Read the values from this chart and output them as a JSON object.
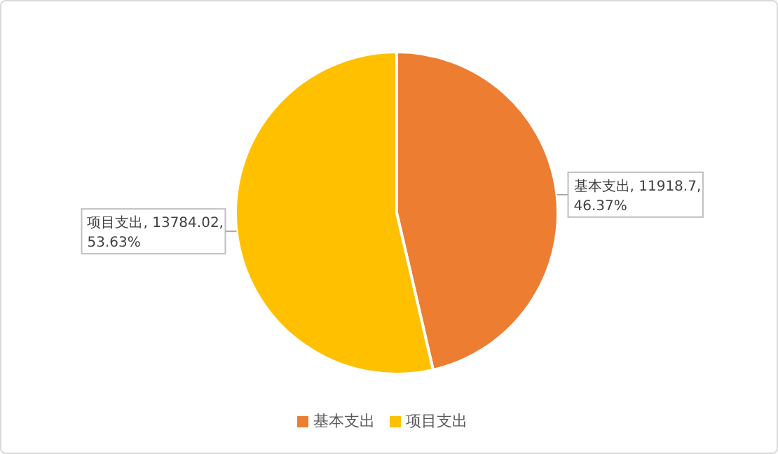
{
  "chart_data": {
    "type": "pie",
    "categories": [
      "基本支出",
      "项目支出"
    ],
    "values": [
      11918.7,
      13784.02
    ],
    "colors": [
      "#ed7d31",
      "#ffc000"
    ],
    "value_labels": [
      "基本支出, 11918.7, 46.37%",
      "项目支出, 13784.02, 53.63%"
    ],
    "legend": "bottom"
  }
}
